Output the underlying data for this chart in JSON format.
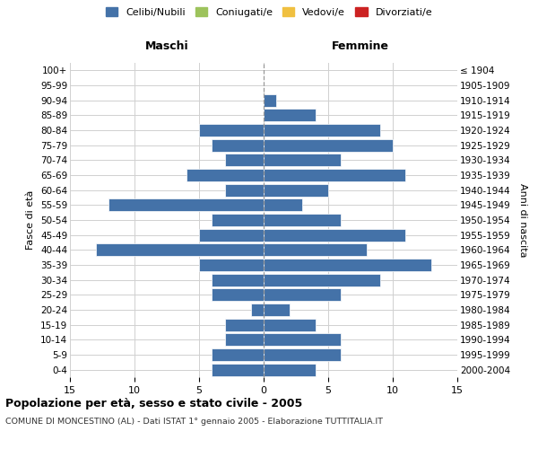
{
  "age_groups": [
    "0-4",
    "5-9",
    "10-14",
    "15-19",
    "20-24",
    "25-29",
    "30-34",
    "35-39",
    "40-44",
    "45-49",
    "50-54",
    "55-59",
    "60-64",
    "65-69",
    "70-74",
    "75-79",
    "80-84",
    "85-89",
    "90-94",
    "95-99",
    "100+"
  ],
  "birth_years": [
    "2000-2004",
    "1995-1999",
    "1990-1994",
    "1985-1989",
    "1980-1984",
    "1975-1979",
    "1970-1974",
    "1965-1969",
    "1960-1964",
    "1955-1959",
    "1950-1954",
    "1945-1949",
    "1940-1944",
    "1935-1939",
    "1930-1934",
    "1925-1929",
    "1920-1924",
    "1915-1919",
    "1910-1914",
    "1905-1909",
    "≤ 1904"
  ],
  "males": [
    4,
    4,
    3,
    3,
    1,
    4,
    4,
    5,
    13,
    5,
    4,
    12,
    3,
    6,
    3,
    4,
    5,
    0,
    0,
    0,
    0
  ],
  "females": [
    4,
    6,
    6,
    4,
    2,
    6,
    9,
    13,
    8,
    11,
    6,
    3,
    5,
    11,
    6,
    10,
    9,
    4,
    1,
    0,
    0
  ],
  "bar_color": "#4472a8",
  "bar_edge_color": "#ffffff",
  "background_color": "#ffffff",
  "grid_color": "#d0d0d0",
  "title": "Popolazione per età, sesso e stato civile - 2005",
  "subtitle": "COMUNE DI MONCESTINO (AL) - Dati ISTAT 1° gennaio 2005 - Elaborazione TUTTITALIA.IT",
  "xlabel_left": "Maschi",
  "xlabel_right": "Femmine",
  "ylabel_left": "Fasce di età",
  "ylabel_right": "Anni di nascita",
  "xlim": 15,
  "legend_labels": [
    "Celibi/Nubili",
    "Coniugati/e",
    "Vedovi/e",
    "Divorziati/e"
  ],
  "legend_colors": [
    "#4472a8",
    "#9dc35c",
    "#f0c040",
    "#cc2222"
  ]
}
